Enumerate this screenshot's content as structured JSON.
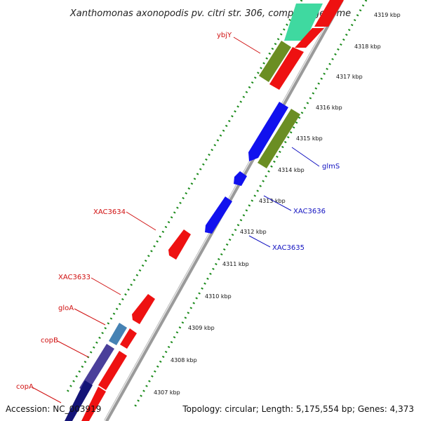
{
  "map": {
    "title": "Xanthomonas axonopodis pv. citri str. 306, complete genome",
    "accession": "Accession: NC_003919",
    "summary": "Topology: circular; Length: 5,175,554 bp; Genes: 4,373",
    "tick_labels": [
      "4319 kbp",
      "4318 kbp",
      "4317 kbp",
      "4316 kbp",
      "4315 kbp",
      "4314 kbp",
      "4313 kbp",
      "4312 kbp",
      "4311 kbp",
      "4310 kbp",
      "4309 kbp",
      "4308 kbp",
      "4307 kbp"
    ],
    "gene_labels": [
      {
        "text": "ybjY",
        "color": "#d01010"
      },
      {
        "text": "glmS",
        "color": "#1010c0"
      },
      {
        "text": "XAC3636",
        "color": "#1010c0"
      },
      {
        "text": "XAC3634",
        "color": "#d01010"
      },
      {
        "text": "XAC3635",
        "color": "#1010c0"
      },
      {
        "text": "XAC3633",
        "color": "#d01010"
      },
      {
        "text": "gloA",
        "color": "#d01010"
      },
      {
        "text": "copB",
        "color": "#d01010"
      },
      {
        "text": "copA",
        "color": "#d01010"
      }
    ],
    "colors": {
      "forward_cds": "#ee1111",
      "reverse_cds": "#1111ee",
      "rna": "#6b8e23",
      "backbone": "#8a8a8a",
      "tick_dots": "#1a8a1a",
      "teal_feature": "#3fd9a0",
      "dark_feature": "#141478",
      "purple_feature": "#4a3f9a",
      "steel_feature": "#4682b4"
    }
  }
}
